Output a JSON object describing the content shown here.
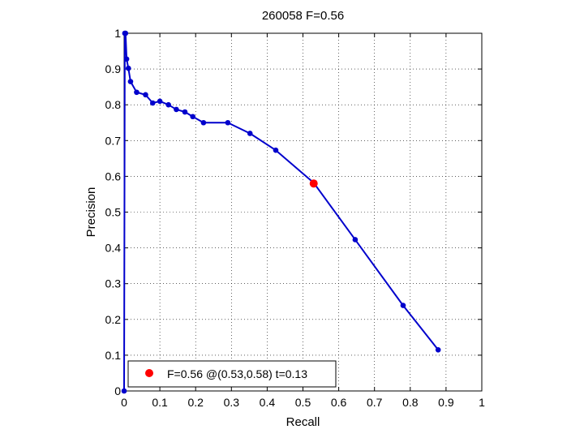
{
  "chart_data": {
    "type": "line",
    "title": "260058 F=0.56",
    "xlabel": "Recall",
    "ylabel": "Precision",
    "xlim": [
      0,
      1
    ],
    "ylim": [
      0,
      1
    ],
    "xticks": [
      0,
      0.1,
      0.2,
      0.3,
      0.4,
      0.5,
      0.6,
      0.7,
      0.8,
      0.9,
      1
    ],
    "yticks": [
      0,
      0.1,
      0.2,
      0.3,
      0.4,
      0.5,
      0.6,
      0.7,
      0.8,
      0.9,
      1
    ],
    "xtick_labels": [
      "0",
      "0.1",
      "0.2",
      "0.3",
      "0.4",
      "0.5",
      "0.6",
      "0.7",
      "0.8",
      "0.9",
      "1"
    ],
    "ytick_labels": [
      "0",
      "0.1",
      "0.2",
      "0.3",
      "0.4",
      "0.5",
      "0.6",
      "0.7",
      "0.8",
      "0.9",
      "1"
    ],
    "grid": true,
    "legend_position": "bottom-left",
    "series": [
      {
        "color": "#0000cc",
        "marker": "dot",
        "x": [
          0,
          0.002,
          0.004,
          0.007,
          0.012,
          0.018,
          0.035,
          0.06,
          0.08,
          0.1,
          0.124,
          0.146,
          0.17,
          0.192,
          0.222,
          0.29,
          0.352,
          0.424,
          0.53,
          0.646,
          0.78,
          0.878
        ],
        "y": [
          0,
          1.0,
          1.0,
          0.928,
          0.902,
          0.865,
          0.835,
          0.828,
          0.805,
          0.81,
          0.8,
          0.787,
          0.78,
          0.767,
          0.75,
          0.75,
          0.72,
          0.673,
          0.582,
          0.423,
          0.239,
          0.115
        ]
      }
    ],
    "highlight": {
      "x": 0.53,
      "y": 0.58,
      "color": "#ff0000",
      "legend_label": "F=0.56 @(0.53,0.58) t=0.13"
    }
  }
}
